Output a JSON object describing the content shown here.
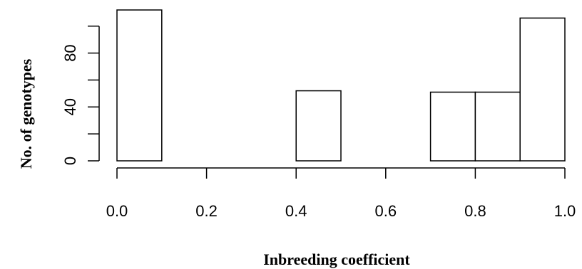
{
  "chart_data": {
    "type": "bar",
    "xlabel": "Inbreeding coefficient",
    "ylabel": "No. of genotypes",
    "bins": [
      {
        "x0": 0.0,
        "x1": 0.1,
        "count": 112
      },
      {
        "x0": 0.1,
        "x1": 0.2,
        "count": 0
      },
      {
        "x0": 0.2,
        "x1": 0.3,
        "count": 0
      },
      {
        "x0": 0.3,
        "x1": 0.4,
        "count": 0
      },
      {
        "x0": 0.4,
        "x1": 0.5,
        "count": 52
      },
      {
        "x0": 0.5,
        "x1": 0.6,
        "count": 0
      },
      {
        "x0": 0.6,
        "x1": 0.7,
        "count": 0
      },
      {
        "x0": 0.7,
        "x1": 0.8,
        "count": 51
      },
      {
        "x0": 0.8,
        "x1": 0.9,
        "count": 51
      },
      {
        "x0": 0.9,
        "x1": 1.0,
        "count": 106
      }
    ],
    "xlim": [
      0,
      1
    ],
    "ylim": [
      0,
      112
    ],
    "x_ticks": [
      {
        "value": 0.0,
        "label": "0.0"
      },
      {
        "value": 0.2,
        "label": "0.2"
      },
      {
        "value": 0.4,
        "label": "0.4"
      },
      {
        "value": 0.6,
        "label": "0.6"
      },
      {
        "value": 0.8,
        "label": "0.8"
      },
      {
        "value": 1.0,
        "label": "1.0"
      }
    ],
    "y_ticks": [
      0,
      20,
      40,
      60,
      80,
      100
    ],
    "y_tick_labels": [
      {
        "value": 0,
        "label": "0"
      },
      {
        "value": 40,
        "label": "40"
      },
      {
        "value": 80,
        "label": "80"
      }
    ],
    "grid": false,
    "legend": "none"
  }
}
